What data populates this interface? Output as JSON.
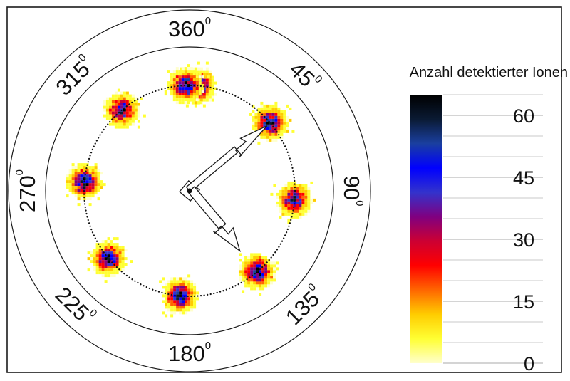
{
  "chart_data": {
    "type": "heatmap",
    "subtype": "polar-detector-image",
    "angle_labels": [
      {
        "value": "360",
        "unit": "0",
        "angle_deg": 0
      },
      {
        "value": "45",
        "unit": "0",
        "angle_deg": 45
      },
      {
        "value": "90",
        "unit": "0",
        "angle_deg": 90
      },
      {
        "value": "135",
        "unit": "0",
        "angle_deg": 135
      },
      {
        "value": "180",
        "unit": "0",
        "angle_deg": 180
      },
      {
        "value": "225",
        "unit": "0",
        "angle_deg": 225
      },
      {
        "value": "270",
        "unit": "0",
        "angle_deg": 270
      },
      {
        "value": "315",
        "unit": "0",
        "angle_deg": 315
      }
    ],
    "ion_clusters": [
      {
        "angle_deg": 5,
        "peak_counts": 60
      },
      {
        "angle_deg": 50,
        "peak_counts": 62
      },
      {
        "angle_deg": 95,
        "peak_counts": 55
      },
      {
        "angle_deg": 140,
        "peak_counts": 62
      },
      {
        "angle_deg": 185,
        "peak_counts": 60
      },
      {
        "angle_deg": 230,
        "peak_counts": 58
      },
      {
        "angle_deg": 275,
        "peak_counts": 60
      },
      {
        "angle_deg": 320,
        "peak_counts": 55
      },
      {
        "angle_deg": 358,
        "peak_counts": 58
      }
    ],
    "pointers": [
      {
        "name": "short",
        "angle_deg": 50
      },
      {
        "name": "long",
        "angle_deg": 140
      }
    ],
    "colorbar": {
      "title": "Anzahl detektierter Ionen",
      "min": 0,
      "max": 65,
      "ticks": [
        0,
        15,
        30,
        45,
        60
      ],
      "colors": [
        "#ffffcc",
        "#ffff33",
        "#ffcc00",
        "#ff6600",
        "#ff0000",
        "#cc0033",
        "#800080",
        "#3333cc",
        "#0000ff",
        "#1a3fa0",
        "#0a1a33",
        "#000000"
      ]
    }
  }
}
